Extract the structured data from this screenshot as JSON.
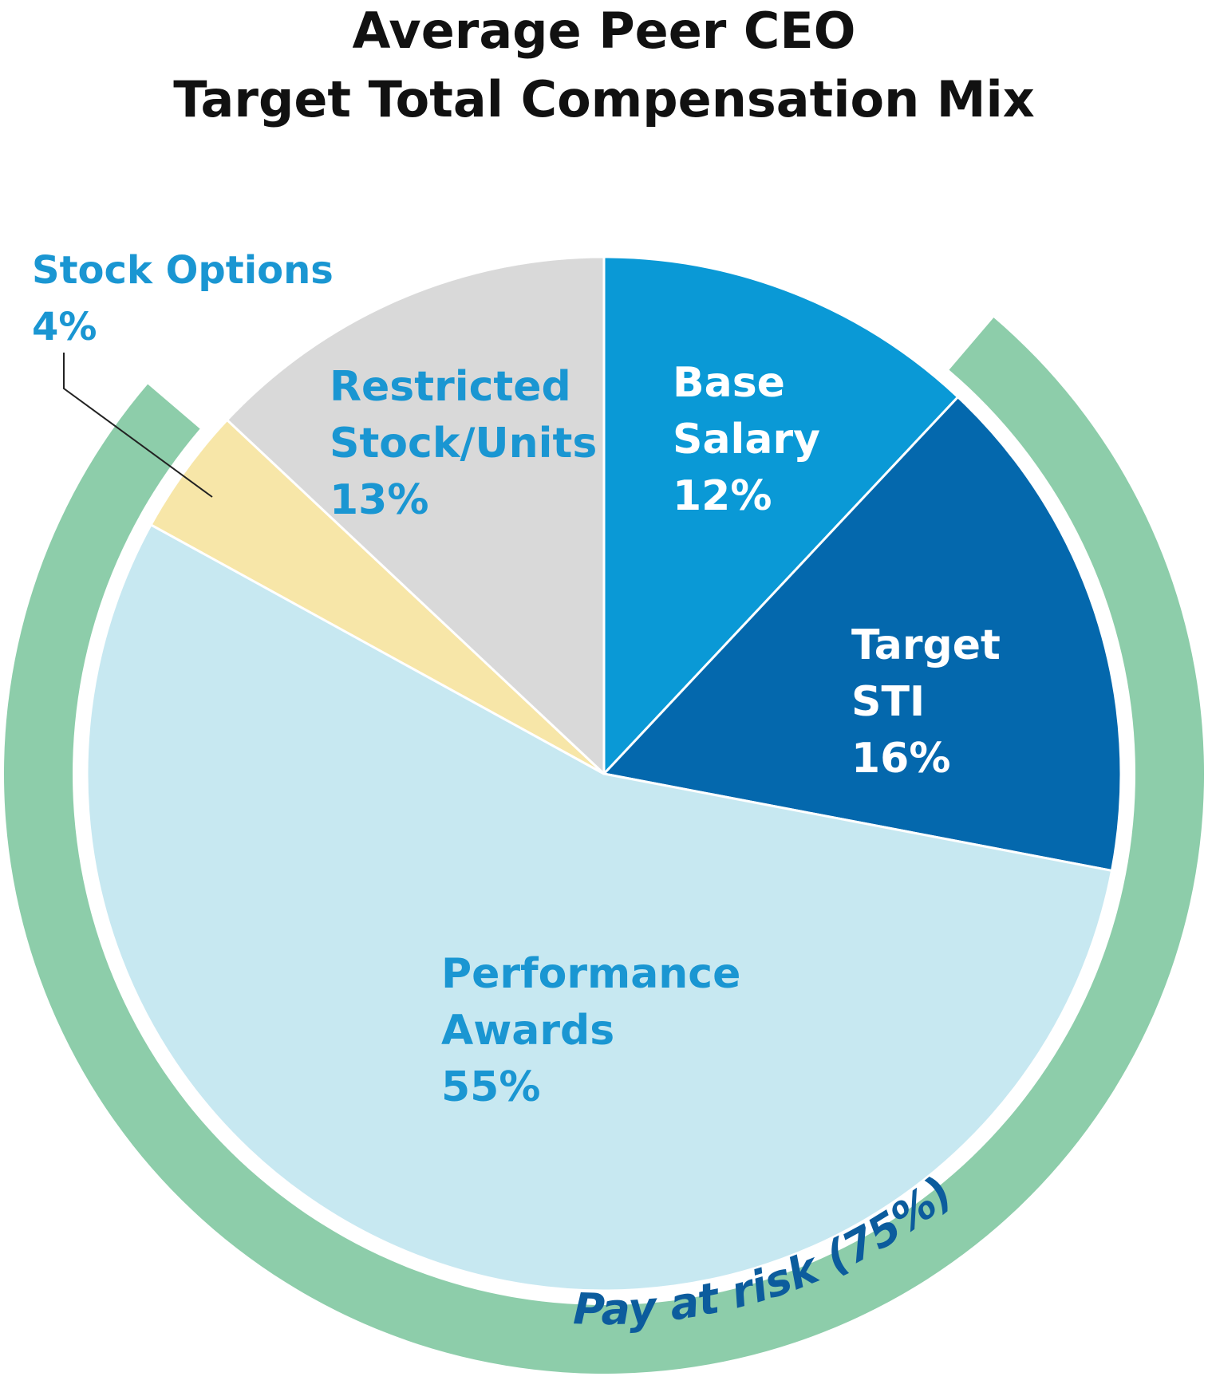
{
  "chart_data": {
    "type": "pie",
    "title": [
      "Average Peer CEO",
      "Target Total Compensation Mix"
    ],
    "slices": [
      {
        "name": "Base Salary",
        "label_lines": [
          "Base",
          "Salary",
          "12%"
        ],
        "value": 12,
        "color": "#0a99d6",
        "label_color": "#ffffff"
      },
      {
        "name": "Target STI",
        "label_lines": [
          "Target",
          "STI",
          "16%"
        ],
        "value": 16,
        "color": "#0468ad",
        "label_color": "#ffffff"
      },
      {
        "name": "Performance Awards",
        "label_lines": [
          "Performance",
          "Awards",
          "55%"
        ],
        "value": 55,
        "color": "#c7e8f1",
        "label_color": "#1a96d2"
      },
      {
        "name": "Stock Options",
        "label_lines": [
          "Stock Options",
          "4%"
        ],
        "value": 4,
        "color": "#f7e6a8",
        "label_color": "#1a96d2"
      },
      {
        "name": "Restricted Stock/Units",
        "label_lines": [
          "Restricted",
          "Stock/Units",
          "13%"
        ],
        "value": 13,
        "color": "#d9d9d9",
        "label_color": "#1a96d2"
      }
    ],
    "highlight_ring": {
      "label": "Pay at risk (75%)",
      "value": 75,
      "color": "#8dcdaa",
      "label_color": "#0c5c9d"
    }
  }
}
